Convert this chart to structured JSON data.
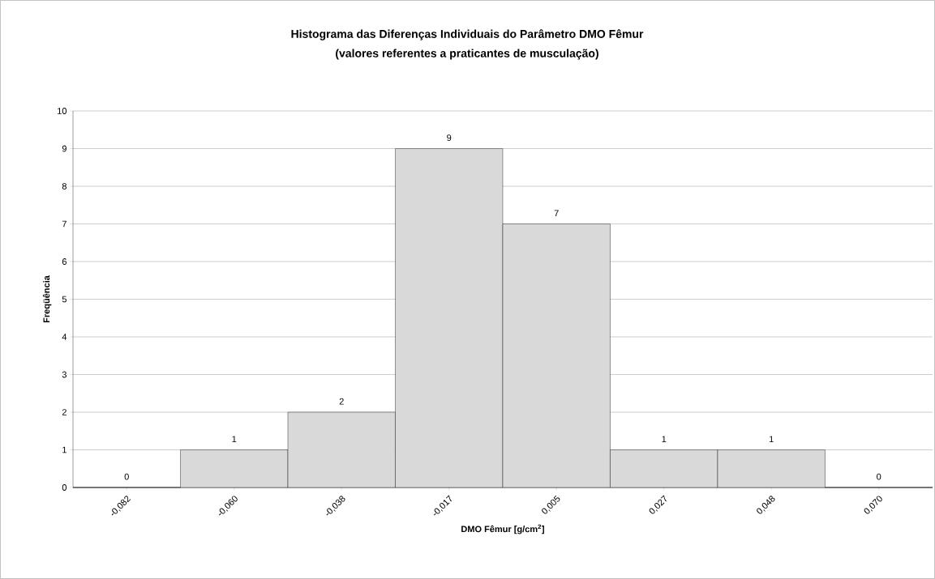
{
  "chart_data": {
    "type": "bar",
    "title": "Histograma das Diferenças Individuais do Parâmetro DMO Fêmur",
    "subtitle": "(valores referentes a praticantes de musculação)",
    "xlabel": "DMO Fêmur [g/cm$^{2}$]",
    "ylabel": "Freqüência",
    "categories": [
      "-0,082",
      "-0,060",
      "-0,038",
      "-0,017",
      "0,005",
      "0,027",
      "0,048",
      "0,070"
    ],
    "values": [
      0,
      1,
      2,
      9,
      7,
      1,
      1,
      0
    ],
    "color": "#d9d9d9",
    "ylim": [
      0,
      10
    ],
    "yticks": [
      0,
      1,
      2,
      3,
      4,
      5,
      6,
      7,
      8,
      9,
      10
    ],
    "grid": "y",
    "data_labels": true
  }
}
